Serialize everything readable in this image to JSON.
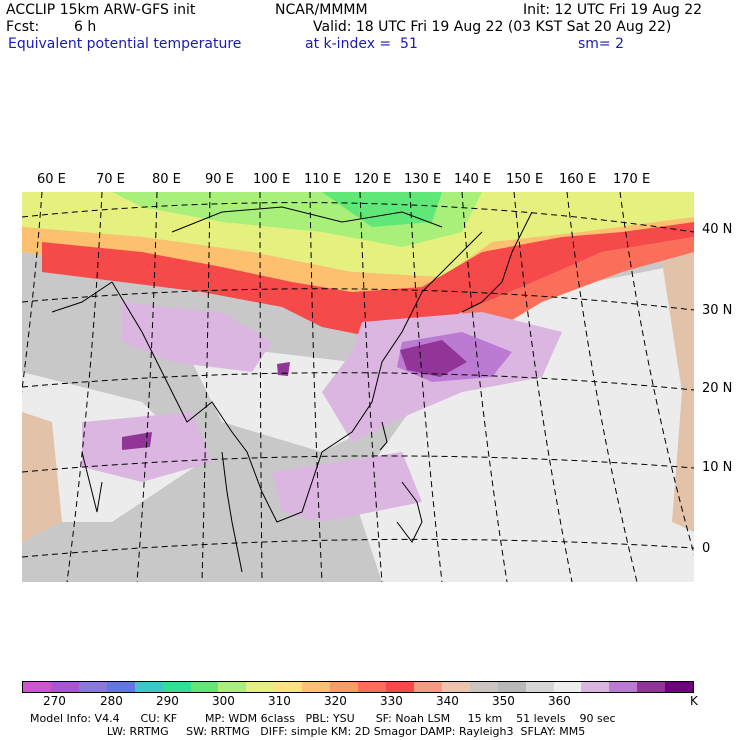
{
  "header": {
    "model": "ACCLIP 15km ARW-GFS init",
    "center": "NCAR/MMMM",
    "init": "Init: 12 UTC Fri 19 Aug 22",
    "fcst_label": "Fcst:",
    "fcst_value": "6 h",
    "valid": "Valid: 18 UTC Fri 19 Aug 22 (03 KST Sat 20 Aug 22)",
    "field": "Equivalent potential temperature",
    "level": "at k-index =  51",
    "smooth": "sm= 2"
  },
  "map": {
    "lon_labels": [
      "60 E",
      "70 E",
      "80 E",
      "90 E",
      "100 E",
      "110 E",
      "120 E",
      "130 E",
      "140 E",
      "150 E",
      "160 E",
      "170 E"
    ],
    "lat_labels": [
      "40 N",
      "30 N",
      "20 N",
      "10 N",
      "0"
    ]
  },
  "colorbar": {
    "colors": [
      "#d152d3",
      "#a855db",
      "#8a78e0",
      "#5f78e6",
      "#3fc6c6",
      "#36dd94",
      "#5fe878",
      "#a8f07a",
      "#e6f07e",
      "#fde37c",
      "#fdc06e",
      "#fb9c63",
      "#fa6e5a",
      "#f64a4a",
      "#f79a82",
      "#eec4ad",
      "#c9c3c1",
      "#b8b8b8",
      "#d6d6d6",
      "#eeeeee",
      "#dab6e0",
      "#bc7bd3",
      "#923598",
      "#700080"
    ],
    "labels": [
      "270",
      "280",
      "290",
      "300",
      "310",
      "320",
      "330",
      "340",
      "350",
      "360"
    ],
    "unit": "K"
  },
  "footer": {
    "line1": "Model Info: V4.4      CU: KF        MP: WDM 6class   PBL: YSU      SF: Noah LSM     15 km    51 levels    90 sec",
    "line2": "                      LW: RRTMG     SW: RRTMG   DIFF: simple KM: 2D Smagor DAMP: Rayleigh3  SFLAY: MM5"
  }
}
